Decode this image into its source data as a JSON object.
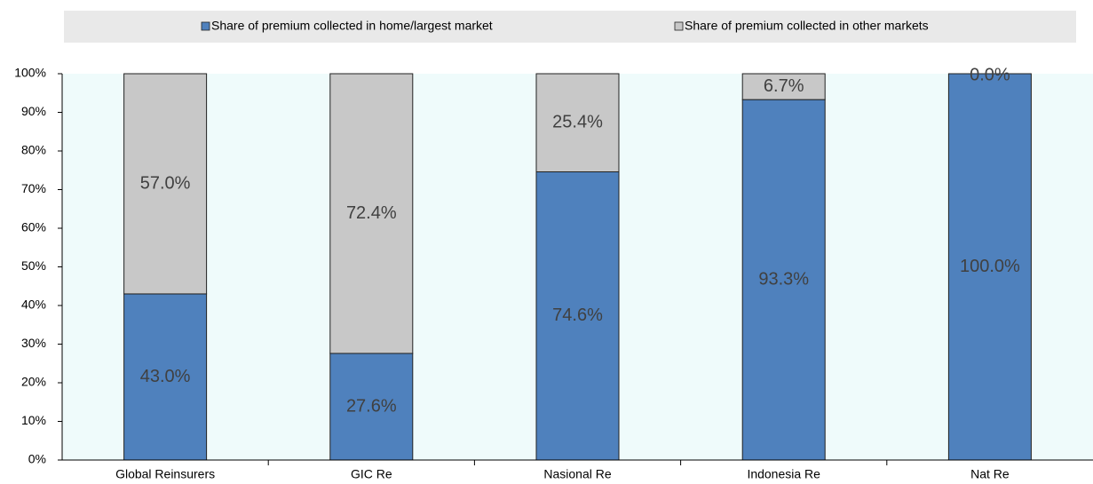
{
  "chart_data": {
    "type": "stacked_bar",
    "categories": [
      "Global Reinsurers",
      "GIC Re",
      "Nasional Re",
      "Indonesia Re",
      "Nat Re"
    ],
    "series": [
      {
        "name": "Share of premium collected in home/largest market",
        "color": "#4f81bd",
        "values": [
          43.0,
          27.6,
          74.6,
          93.3,
          100.0
        ],
        "value_labels": [
          "43.0%",
          "27.6%",
          "74.6%",
          "93.3%",
          "100.0%"
        ]
      },
      {
        "name": "Share of premium collected in other markets",
        "color": "#c8c8c8",
        "values": [
          57.0,
          72.4,
          25.4,
          6.7,
          0.0
        ],
        "value_labels": [
          "57.0%",
          "72.4%",
          "25.4%",
          "6.7%",
          "0.0%"
        ]
      }
    ],
    "ylim": [
      0,
      100
    ],
    "yticks": [
      {
        "value": 0,
        "label": "0%"
      },
      {
        "value": 10,
        "label": "10%"
      },
      {
        "value": 20,
        "label": "20%"
      },
      {
        "value": 30,
        "label": "30%"
      },
      {
        "value": 40,
        "label": "40%"
      },
      {
        "value": 50,
        "label": "50%"
      },
      {
        "value": 60,
        "label": "60%"
      },
      {
        "value": 70,
        "label": "70%"
      },
      {
        "value": 80,
        "label": "80%"
      },
      {
        "value": 90,
        "label": "90%"
      },
      {
        "value": 100,
        "label": "100%"
      }
    ],
    "legend": "top",
    "grid": false
  }
}
